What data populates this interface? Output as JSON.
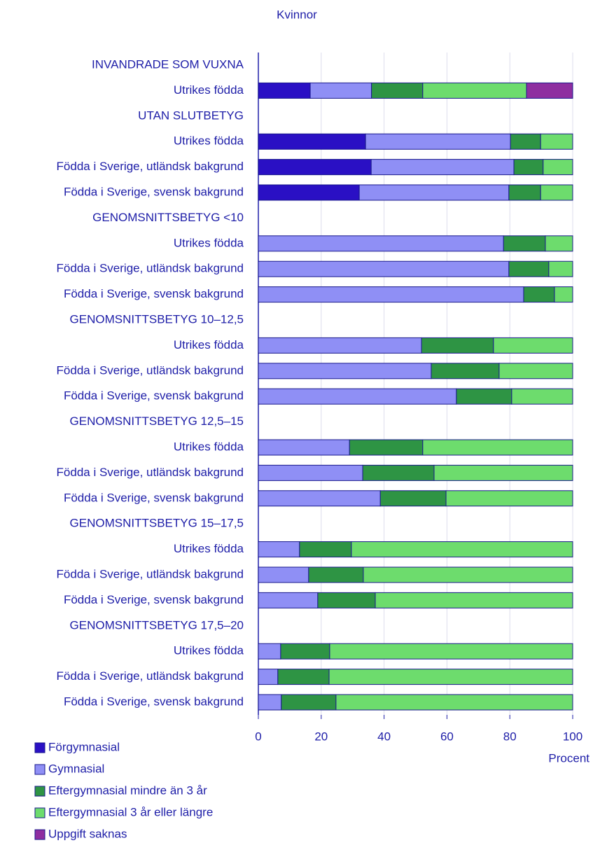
{
  "chart_data": {
    "type": "stacked_barh",
    "title": "Kvinnor",
    "xlabel": "Procent",
    "categories": [
      "INVANDRADE SOM VUXNA",
      "Utrikes födda",
      "UTAN SLUTBETYG",
      "Utrikes födda",
      "Födda i Sverige, utländsk bakgrund",
      "Födda i Sverige, svensk bakgrund",
      "GENOMSNITTSBETYG <10",
      "Utrikes födda",
      "Födda i Sverige, utländsk bakgrund",
      "Födda i Sverige, svensk bakgrund",
      "GENOMSNITTSBETYG 10–12,5",
      "Utrikes födda",
      "Födda i Sverige, utländsk bakgrund",
      "Födda i Sverige, svensk bakgrund",
      "GENOMSNITTSBETYG 12,5–15",
      "Utrikes födda",
      "Födda i Sverige, utländsk bakgrund",
      "Födda i Sverige, svensk bakgrund",
      "GENOMSNITTSBETYG 15–17,5",
      "Utrikes födda",
      "Födda i Sverige, utländsk bakgrund",
      "Födda i Sverige, svensk bakgrund",
      "GENOMSNITTSBETYG 17,5–20",
      "Utrikes födda",
      "Födda i Sverige, utländsk bakgrund",
      "Födda i Sverige, svensk bakgrund"
    ],
    "series": [
      {
        "name": "Förgymnasial",
        "color": "#2a10c4",
        "values": [
          null,
          16.5,
          null,
          34.1,
          35.9,
          32.1,
          null,
          null,
          null,
          null,
          null,
          null,
          null,
          null,
          null,
          null,
          null,
          null,
          null,
          null,
          null,
          null,
          null,
          null,
          null,
          null
        ]
      },
      {
        "name": "Gymnasial",
        "color": "#8f8ff5",
        "values": [
          null,
          19.5,
          null,
          46.1,
          45.4,
          47.6,
          null,
          78,
          79.7,
          84.4,
          null,
          51.9,
          55,
          63,
          null,
          29,
          33.2,
          38.8,
          null,
          13.1,
          16,
          18.9,
          null,
          7.1,
          6.2,
          7.3
        ]
      },
      {
        "name": "Eftergymnasial mindre än 3 år",
        "color": "#2e9444",
        "values": [
          null,
          16.3,
          null,
          9.6,
          9.3,
          10.1,
          null,
          13.3,
          12.7,
          9.8,
          null,
          22.9,
          21.6,
          17.6,
          null,
          23.3,
          22.7,
          20.9,
          null,
          16.5,
          17.4,
          18.3,
          null,
          15.6,
          16.3,
          17.4
        ]
      },
      {
        "name": "Eftergymnasial 3 år eller längre",
        "color": "#6ddc6d",
        "values": [
          null,
          33,
          null,
          10.2,
          9.4,
          10.2,
          null,
          8.7,
          7.6,
          5.8,
          null,
          25.2,
          23.4,
          19.4,
          null,
          47.7,
          44.1,
          40.3,
          null,
          70.4,
          66.6,
          62.8,
          null,
          77.3,
          77.5,
          75.3
        ]
      },
      {
        "name": "Uppgift saknas",
        "color": "#8e2ea0",
        "values": [
          null,
          14.7,
          null,
          null,
          null,
          null,
          null,
          null,
          null,
          null,
          null,
          null,
          null,
          null,
          null,
          null,
          null,
          null,
          null,
          null,
          null,
          null,
          null,
          null,
          null,
          null
        ]
      }
    ],
    "xlim": [
      0,
      100
    ],
    "xticks": [
      0,
      20,
      40,
      60,
      80,
      100
    ],
    "grid": true
  }
}
